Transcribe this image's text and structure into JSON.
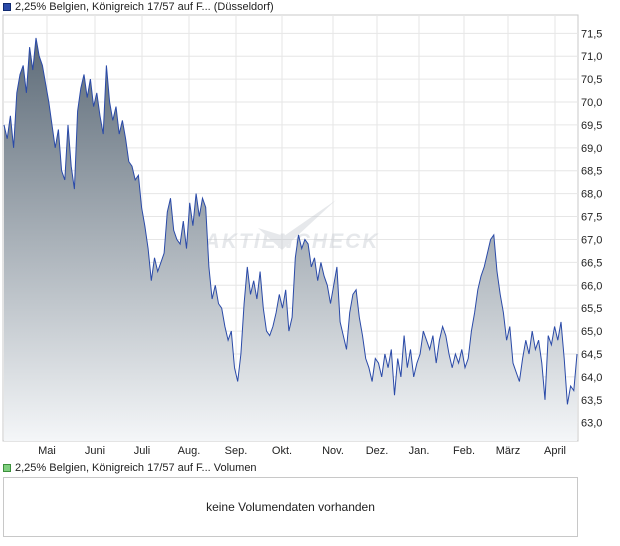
{
  "legend": {
    "price": "2,25% Belgien, Königreich 17/57 auf F... (Düsseldorf)",
    "volume": "2,25% Belgien, Königreich 17/57 auf F... Volumen"
  },
  "volume_panel": {
    "message": "keine Volumendaten vorhanden"
  },
  "watermark": "AKTIENCHECK",
  "colors": {
    "line": "#2a4aa8",
    "area_top": "#5d6b78",
    "area_bottom": "#f4f6f8",
    "grid": "#e6e6e6"
  },
  "chart_data": {
    "type": "area",
    "x_labels": [
      "Mai",
      "Juni",
      "Juli",
      "Aug.",
      "Sep.",
      "Okt.",
      "Nov.",
      "Dez.",
      "Jan.",
      "Feb.",
      "März",
      "April"
    ],
    "yticks": [
      "63,0",
      "63,5",
      "64,0",
      "64,5",
      "65,0",
      "65,5",
      "66,0",
      "66,5",
      "67,0",
      "67,5",
      "68,0",
      "68,5",
      "69,0",
      "69,5",
      "70,0",
      "70,5",
      "71,0",
      "71,5"
    ],
    "ylim": [
      62.6,
      71.9
    ],
    "grid": true,
    "series": [
      {
        "values": [
          69.5,
          69.2,
          69.7,
          69.0,
          70.2,
          70.6,
          70.8,
          70.2,
          71.2,
          70.7,
          71.4,
          71.0,
          70.8,
          70.4,
          70.0,
          69.5,
          69.0,
          69.4,
          68.5,
          68.3,
          69.5,
          68.6,
          68.1,
          69.8,
          70.3,
          70.6,
          70.1,
          70.5,
          69.9,
          70.2,
          69.7,
          69.3,
          70.8,
          70.0,
          69.6,
          69.9,
          69.3,
          69.6,
          69.2,
          68.7,
          68.6,
          68.3,
          68.4,
          67.7,
          67.3,
          66.8,
          66.1,
          66.6,
          66.3,
          66.5,
          66.7,
          67.6,
          67.9,
          67.2,
          67.0,
          66.9,
          67.4,
          66.8,
          67.8,
          67.3,
          68.0,
          67.5,
          67.9,
          67.7,
          66.4,
          65.7,
          66.0,
          65.6,
          65.5,
          65.1,
          64.8,
          65.0,
          64.2,
          63.9,
          64.5,
          65.6,
          66.4,
          65.8,
          66.1,
          65.7,
          66.3,
          65.5,
          65.0,
          64.9,
          65.1,
          65.4,
          65.8,
          65.5,
          65.9,
          65.0,
          65.3,
          66.6,
          67.1,
          66.8,
          67.0,
          66.9,
          66.4,
          66.6,
          66.1,
          66.5,
          66.2,
          66.0,
          65.6,
          66.0,
          66.4,
          65.2,
          64.9,
          64.6,
          65.4,
          65.8,
          65.9,
          65.3,
          64.9,
          64.4,
          64.2,
          63.9,
          64.4,
          64.3,
          64.0,
          64.5,
          64.2,
          64.6,
          63.6,
          64.4,
          64.0,
          64.9,
          64.2,
          64.6,
          64.0,
          64.3,
          64.5,
          65.0,
          64.8,
          64.6,
          64.9,
          64.3,
          64.8,
          65.1,
          64.9,
          64.5,
          64.2,
          64.5,
          64.3,
          64.6,
          64.2,
          64.4,
          65.0,
          65.4,
          65.9,
          66.2,
          66.4,
          66.7,
          67.0,
          67.1,
          66.3,
          65.8,
          65.4,
          64.8,
          65.1,
          64.3,
          64.1,
          63.9,
          64.4,
          64.8,
          64.5,
          65.0,
          64.6,
          64.8,
          64.3,
          63.5,
          64.9,
          64.7,
          65.1,
          64.8,
          65.2,
          64.4,
          63.4,
          63.8,
          63.7,
          64.5
        ]
      }
    ]
  }
}
